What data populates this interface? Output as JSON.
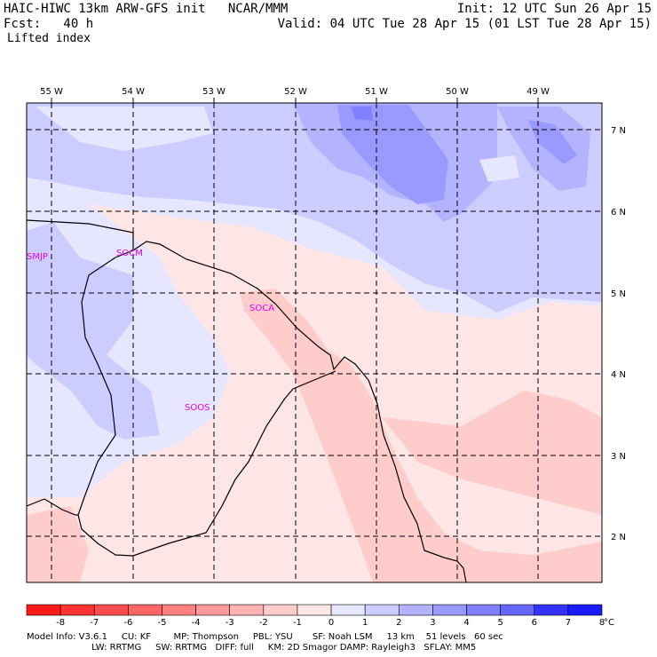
{
  "header": {
    "title": "HAIC-HIWC 13km ARW-GFS init   NCAR/MMM",
    "init": "Init: 12 UTC Sun 26 Apr 15",
    "forecast": "Fcst:   40 h",
    "valid": "Valid: 04 UTC Tue 28 Apr 15 (01 LST Tue 28 Apr 15)",
    "field": "Lifted index"
  },
  "map": {
    "lon_labels": [
      "55 W",
      "54 W",
      "53 W",
      "52 W",
      "51 W",
      "50 W",
      "49 W"
    ],
    "lat_labels": [
      "7 N",
      "6 N",
      "5 N",
      "4 N",
      "3 N",
      "2 N"
    ],
    "stations": [
      "SMJP",
      "SOCM",
      "SOCA",
      "SOOS"
    ]
  },
  "colorbar": {
    "ticks": [
      "-8",
      "-7",
      "-6",
      "-5",
      "-4",
      "-3",
      "-2",
      "-1",
      "0",
      "1",
      "2",
      "3",
      "4",
      "5",
      "6",
      "7",
      "8"
    ],
    "unit": "°C",
    "colors": [
      "#ff1a1a",
      "#ff3333",
      "#ff4d4d",
      "#ff6666",
      "#ff8080",
      "#ff9999",
      "#ffb3b3",
      "#ffcccc",
      "#ffe6e6",
      "#e6e6ff",
      "#ccccff",
      "#b3b3ff",
      "#9999ff",
      "#8080ff",
      "#6666ff",
      "#3333ff",
      "#1a1aff"
    ]
  },
  "footer": {
    "line1": "Model Info: V3.6.1     CU: KF        MP: Thompson     PBL: YSU       SF: Noah LSM     13 km    51 levels   60 sec",
    "line2": "                       LW: RRTMG     SW: RRTMG   DIFF: full     KM: 2D Smagor DAMP: Rayleigh3   SFLAY: MM5"
  }
}
